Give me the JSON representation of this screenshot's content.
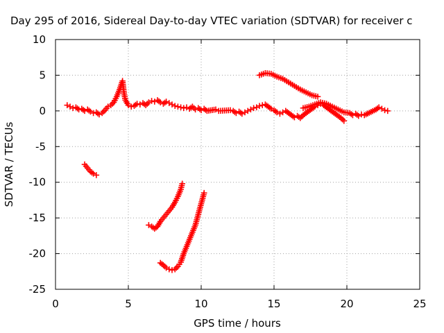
{
  "chart_data": {
    "type": "scatter",
    "title": "Day 295 of 2016, Sidereal Day-to-day VTEC variation (SDTVAR) for receiver c",
    "xlabel": "GPS time / hours",
    "ylabel": "SDTVAR / TECUs",
    "xlim": [
      0,
      25
    ],
    "ylim": [
      -25,
      10
    ],
    "xticks": [
      "0",
      "5",
      "10",
      "15",
      "20",
      "25"
    ],
    "yticks": [
      "10",
      "5",
      "0",
      "-5",
      "-10",
      "-15",
      "-20",
      "-25"
    ],
    "grid": true,
    "legend": "none",
    "marker": "plus",
    "color": "#ff0000",
    "series": [
      {
        "points": [
          [
            0.8,
            0.8
          ],
          [
            1.0,
            0.6
          ],
          [
            1.2,
            0.4
          ],
          [
            1.4,
            0.5
          ],
          [
            1.6,
            0.2
          ],
          [
            1.8,
            0.3
          ],
          [
            2.0,
            0.0
          ],
          [
            2.2,
            0.2
          ],
          [
            2.4,
            -0.1
          ],
          [
            2.6,
            -0.3
          ],
          [
            2.8,
            -0.2
          ],
          [
            3.0,
            -0.5
          ],
          [
            3.2,
            -0.3
          ],
          [
            3.4,
            0.1
          ],
          [
            3.6,
            0.6
          ],
          [
            3.8,
            0.8
          ],
          [
            4.0,
            1.2
          ],
          [
            4.2,
            2.0
          ],
          [
            4.4,
            3.0
          ],
          [
            4.6,
            4.2
          ],
          [
            4.7,
            2.5
          ],
          [
            4.8,
            1.5
          ],
          [
            5.0,
            0.8
          ],
          [
            5.2,
            0.6
          ],
          [
            5.4,
            0.7
          ],
          [
            5.6,
            1.0
          ],
          [
            5.8,
            0.9
          ],
          [
            6.0,
            1.1
          ],
          [
            6.2,
            0.8
          ],
          [
            6.4,
            1.2
          ],
          [
            6.6,
            1.4
          ],
          [
            6.8,
            1.3
          ],
          [
            7.0,
            1.5
          ],
          [
            7.2,
            1.2
          ],
          [
            7.4,
            1.0
          ],
          [
            7.6,
            1.3
          ],
          [
            7.8,
            1.1
          ],
          [
            8.0,
            0.9
          ],
          [
            8.2,
            0.7
          ],
          [
            8.4,
            0.6
          ],
          [
            8.6,
            0.5
          ],
          [
            8.8,
            0.4
          ],
          [
            9.0,
            0.5
          ],
          [
            9.2,
            0.3
          ],
          [
            9.4,
            0.6
          ],
          [
            9.6,
            0.2
          ],
          [
            9.8,
            0.4
          ],
          [
            10.0,
            0.1
          ],
          [
            10.2,
            0.3
          ],
          [
            10.4,
            0.0
          ],
          [
            11.0,
            0.2
          ],
          [
            11.2,
            0.0
          ],
          [
            12.0,
            0.1
          ],
          [
            12.2,
            0.0
          ],
          [
            12.4,
            -0.3
          ],
          [
            12.6,
            -0.1
          ],
          [
            12.8,
            -0.4
          ],
          [
            13.0,
            -0.2
          ],
          [
            13.2,
            0.0
          ],
          [
            13.4,
            0.2
          ],
          [
            13.6,
            0.4
          ],
          [
            13.8,
            0.5
          ],
          [
            14.0,
            0.7
          ],
          [
            14.2,
            0.8
          ],
          [
            14.4,
            0.9
          ],
          [
            14.6,
            0.6
          ],
          [
            14.8,
            0.3
          ],
          [
            15.0,
            0.1
          ],
          [
            15.2,
            -0.2
          ],
          [
            15.4,
            -0.4
          ],
          [
            15.6,
            -0.2
          ],
          [
            15.8,
            0.0
          ],
          [
            16.0,
            -0.3
          ],
          [
            16.2,
            -0.6
          ],
          [
            16.4,
            -0.9
          ],
          [
            16.6,
            -0.7
          ],
          [
            16.8,
            -1.0
          ],
          [
            17.0,
            -0.6
          ],
          [
            17.2,
            -0.3
          ],
          [
            17.4,
            0.0
          ],
          [
            17.6,
            0.3
          ],
          [
            17.8,
            0.6
          ],
          [
            18.0,
            0.8
          ],
          [
            18.2,
            1.0
          ],
          [
            18.4,
            0.8
          ],
          [
            18.6,
            0.5
          ],
          [
            18.8,
            0.2
          ],
          [
            19.0,
            -0.1
          ],
          [
            19.2,
            -0.4
          ],
          [
            19.4,
            -0.7
          ],
          [
            19.6,
            -1.0
          ],
          [
            19.8,
            -1.4
          ],
          [
            17.0,
            0.4
          ],
          [
            17.4,
            0.6
          ],
          [
            17.8,
            0.9
          ],
          [
            18.2,
            1.2
          ],
          [
            18.6,
            1.0
          ],
          [
            19.0,
            0.6
          ],
          [
            19.4,
            0.2
          ],
          [
            19.8,
            -0.2
          ],
          [
            20.2,
            -0.3
          ],
          [
            20.4,
            -0.6
          ],
          [
            20.6,
            -0.4
          ],
          [
            20.8,
            -0.7
          ],
          [
            21.0,
            -0.5
          ],
          [
            21.2,
            -0.6
          ],
          [
            22.0,
            0.2
          ],
          [
            22.2,
            0.5
          ],
          [
            22.4,
            0.3
          ],
          [
            22.6,
            0.1
          ],
          [
            22.8,
            0.0
          ],
          [
            14.0,
            5.0
          ],
          [
            14.4,
            5.3
          ],
          [
            14.8,
            5.2
          ],
          [
            15.2,
            4.8
          ],
          [
            15.6,
            4.5
          ],
          [
            16.0,
            4.0
          ],
          [
            16.4,
            3.5
          ],
          [
            16.8,
            3.0
          ],
          [
            17.2,
            2.6
          ],
          [
            17.6,
            2.2
          ],
          [
            18.0,
            2.0
          ],
          [
            2.0,
            -7.5
          ],
          [
            2.2,
            -8.0
          ],
          [
            2.4,
            -8.5
          ],
          [
            2.6,
            -8.8
          ],
          [
            2.8,
            -9.0
          ],
          [
            6.4,
            -16.0
          ],
          [
            6.6,
            -16.2
          ],
          [
            6.8,
            -16.5
          ],
          [
            7.0,
            -16.2
          ],
          [
            7.2,
            -15.5
          ],
          [
            7.4,
            -15.0
          ],
          [
            7.6,
            -14.5
          ],
          [
            7.8,
            -14.0
          ],
          [
            8.0,
            -13.5
          ],
          [
            8.2,
            -12.8
          ],
          [
            8.4,
            -12.0
          ],
          [
            8.6,
            -11.0
          ],
          [
            8.7,
            -10.2
          ],
          [
            7.2,
            -21.3
          ],
          [
            7.4,
            -21.6
          ],
          [
            7.6,
            -22.0
          ],
          [
            7.8,
            -22.2
          ],
          [
            8.0,
            -22.3
          ],
          [
            8.2,
            -22.2
          ],
          [
            8.4,
            -21.8
          ],
          [
            8.6,
            -21.2
          ],
          [
            8.8,
            -20.0
          ],
          [
            9.0,
            -19.0
          ],
          [
            9.2,
            -18.0
          ],
          [
            9.4,
            -17.0
          ],
          [
            9.6,
            -16.0
          ],
          [
            9.8,
            -14.5
          ],
          [
            10.0,
            -13.0
          ],
          [
            10.2,
            -11.5
          ]
        ]
      }
    ]
  }
}
